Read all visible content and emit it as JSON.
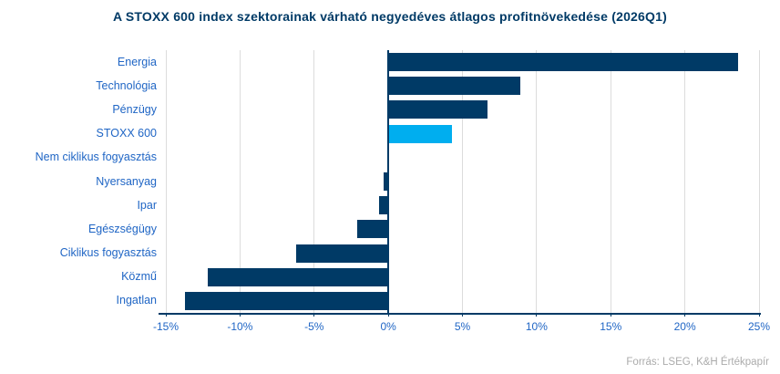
{
  "title": "A STOXX 600 index szektorainak várható negyedéves átlagos profitnövekedése (2026Q1)",
  "footer": "Forrás: LSEG, K&H Értékpapír",
  "colors": {
    "bar": "#003A66",
    "highlight": "#00AEEF",
    "grid": "#DCDCDC",
    "axis": "#003A66",
    "label_text": "#2066C5",
    "title_text": "#003A66",
    "footer_text": "#ABABAB"
  },
  "chart_data": {
    "type": "bar",
    "orientation": "horizontal",
    "title": "A STOXX 600 index szektorainak várható negyedéves átlagos profitnövekedése (2026Q1)",
    "categories": [
      "Energia",
      "Technológia",
      "Pénzügy",
      "STOXX 600",
      "Nem ciklikus fogyasztás",
      "Nyersanyag",
      "Ipar",
      "Egészségügy",
      "Ciklikus fogyasztás",
      "Közmű",
      "Ingatlan"
    ],
    "values": [
      23.6,
      8.9,
      6.7,
      4.3,
      0.0,
      -0.3,
      -0.6,
      -2.1,
      -6.2,
      -12.2,
      -13.7
    ],
    "unit": "%",
    "highlight_category": "STOXX 600",
    "xlim": [
      -15,
      25
    ],
    "xticks": [
      -15,
      -10,
      -5,
      0,
      5,
      10,
      15,
      20,
      25
    ],
    "xtick_labels": [
      "-15%",
      "-10%",
      "-5%",
      "0%",
      "5%",
      "10%",
      "15%",
      "20%",
      "25%"
    ],
    "grid": true,
    "legend": "none",
    "source": "Forrás: LSEG, K&H Értékpapír"
  }
}
